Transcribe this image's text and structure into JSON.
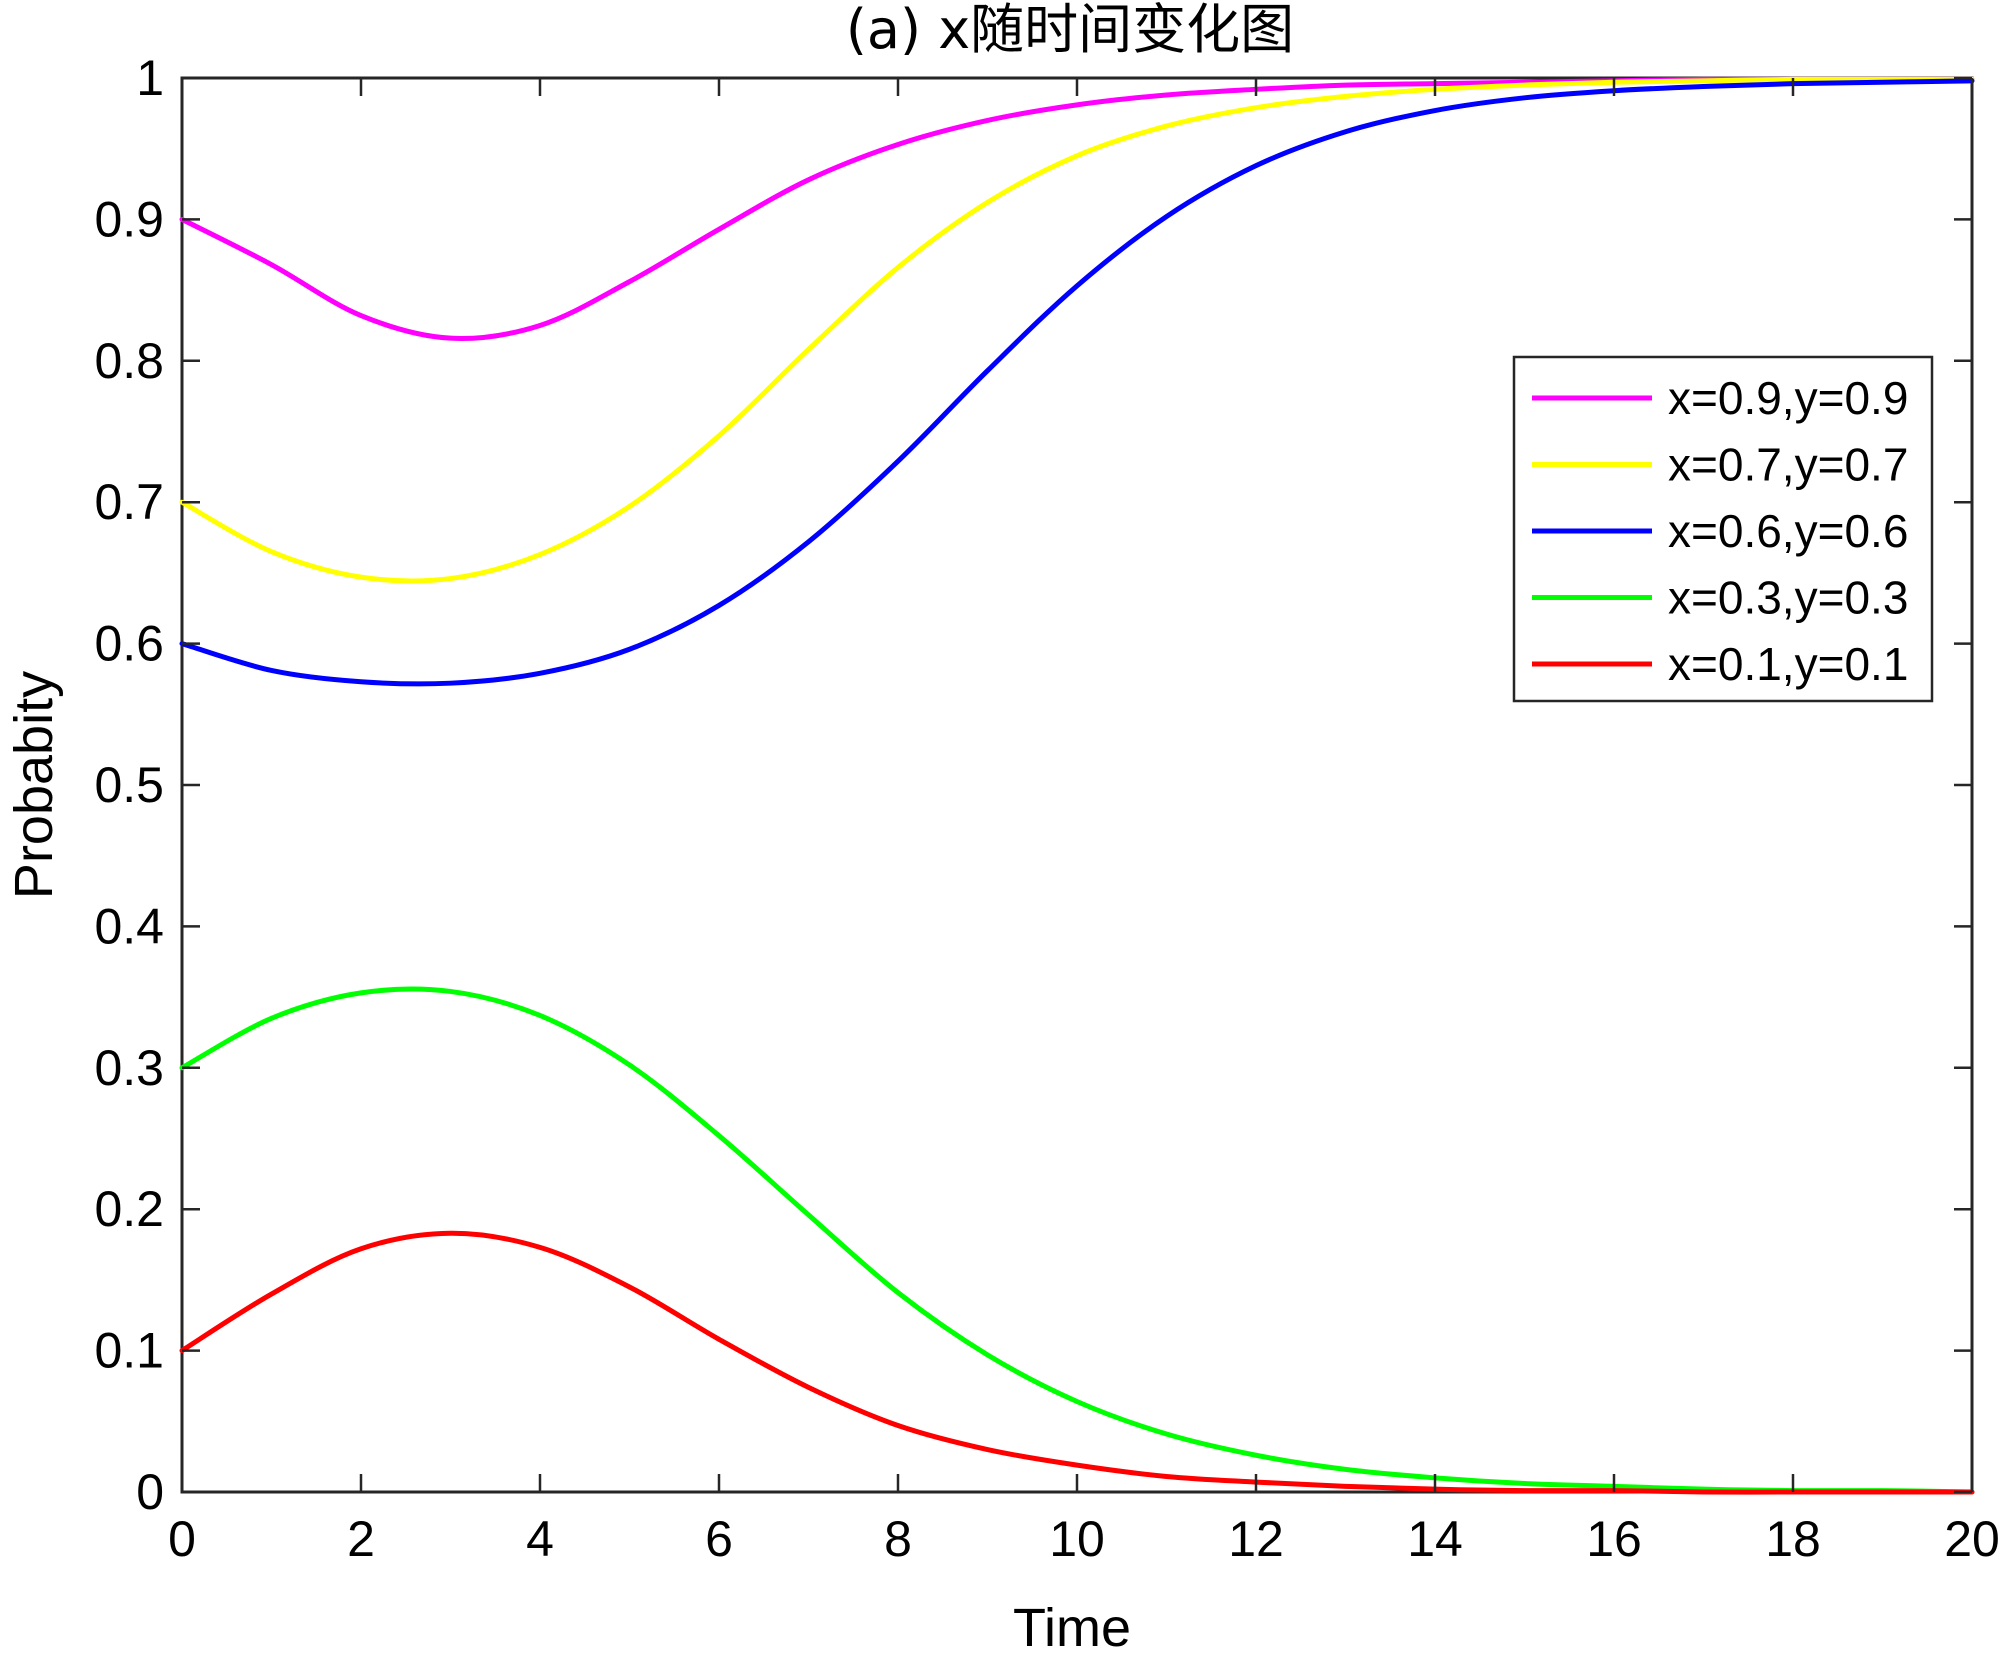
{
  "chart_data": {
    "type": "line",
    "title": "(a) x随时间变化图",
    "xlabel": "Time",
    "ylabel": "Probabity",
    "xlim": [
      0,
      20
    ],
    "ylim": [
      0,
      1
    ],
    "x_ticks": [
      "0",
      "2",
      "4",
      "6",
      "8",
      "10",
      "12",
      "14",
      "16",
      "18",
      "20"
    ],
    "y_ticks": [
      "0",
      "0.1",
      "0.2",
      "0.3",
      "0.4",
      "0.5",
      "0.6",
      "0.7",
      "0.8",
      "0.9",
      "1"
    ],
    "grid": false,
    "legend_position": "top-right",
    "x": [
      0,
      1,
      2,
      3,
      4,
      5,
      6,
      7,
      8,
      9,
      10,
      11,
      12,
      13,
      14,
      15,
      16,
      17,
      18,
      19,
      20
    ],
    "series": [
      {
        "name": "x=0.9,y=0.9",
        "color": "#ff00ff",
        "values": [
          0.9,
          0.868,
          0.832,
          0.816,
          0.825,
          0.856,
          0.893,
          0.928,
          0.953,
          0.97,
          0.981,
          0.988,
          0.992,
          0.995,
          0.996,
          0.997,
          0.998,
          0.999,
          0.999,
          0.999,
          0.999
        ]
      },
      {
        "name": "x=0.7,y=0.7",
        "color": "#ffff00",
        "values": [
          0.7,
          0.665,
          0.647,
          0.646,
          0.663,
          0.697,
          0.747,
          0.808,
          0.866,
          0.912,
          0.945,
          0.966,
          0.979,
          0.987,
          0.992,
          0.995,
          0.997,
          0.998,
          0.999,
          0.999,
          0.999
        ]
      },
      {
        "name": "x=0.6,y=0.6",
        "color": "#0000ff",
        "values": [
          0.6,
          0.581,
          0.573,
          0.572,
          0.579,
          0.596,
          0.627,
          0.672,
          0.729,
          0.793,
          0.853,
          0.902,
          0.938,
          0.962,
          0.977,
          0.986,
          0.991,
          0.994,
          0.996,
          0.997,
          0.998
        ]
      },
      {
        "name": "x=0.3,y=0.3",
        "color": "#00ff00",
        "values": [
          0.3,
          0.335,
          0.353,
          0.354,
          0.337,
          0.302,
          0.252,
          0.196,
          0.141,
          0.097,
          0.064,
          0.041,
          0.026,
          0.016,
          0.01,
          0.006,
          0.004,
          0.002,
          0.001,
          0.001,
          0.0
        ]
      },
      {
        "name": "x=0.1,y=0.1",
        "color": "#ff0000",
        "values": [
          0.1,
          0.14,
          0.172,
          0.183,
          0.173,
          0.145,
          0.108,
          0.074,
          0.047,
          0.03,
          0.019,
          0.011,
          0.007,
          0.004,
          0.002,
          0.001,
          0.001,
          0.0,
          0.0,
          0.0,
          0.0
        ]
      }
    ]
  }
}
